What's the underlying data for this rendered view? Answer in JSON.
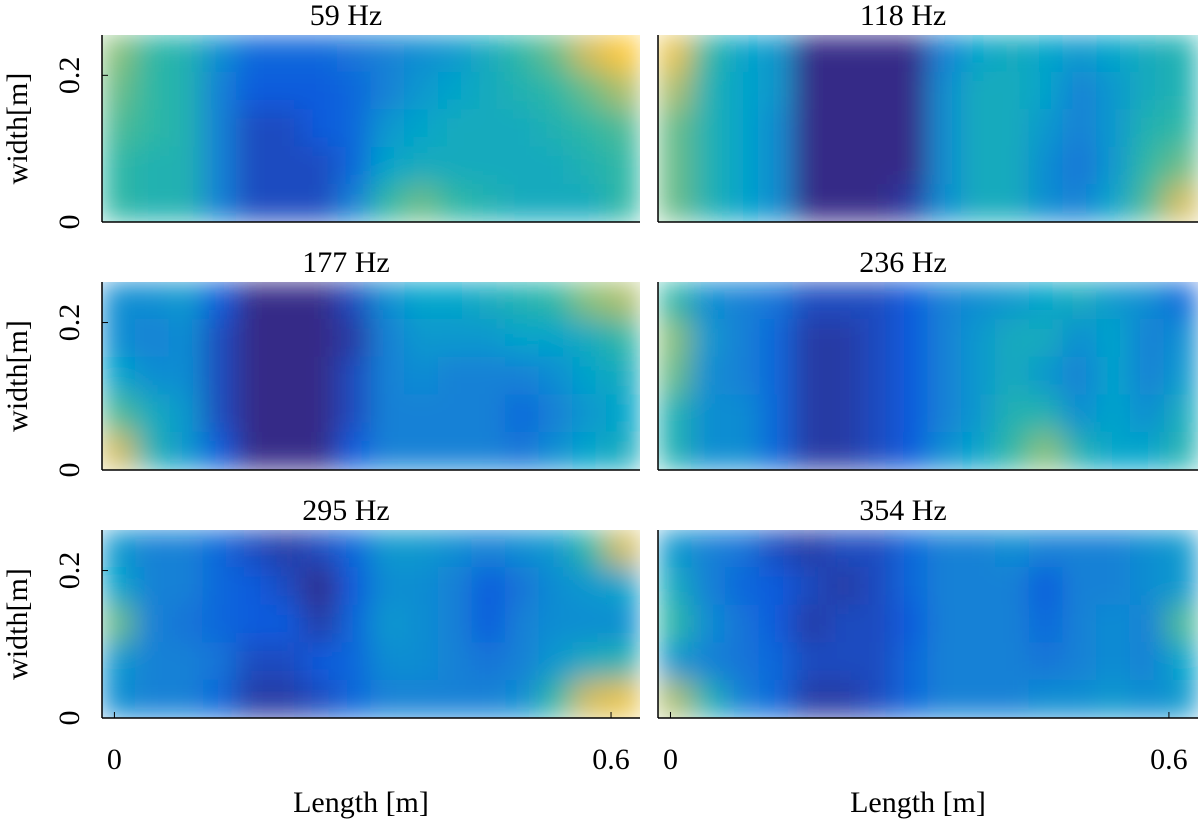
{
  "chart_data": [
    {
      "type": "heatmap",
      "title": "59 Hz",
      "ylabel": "width[m]",
      "colormap": "parula",
      "xlim": [
        -0.015,
        0.635
      ],
      "ylim": [
        0,
        0.255
      ],
      "yticks": [
        0,
        0.2
      ],
      "z": [
        [
          0.75,
          0.6,
          0.55,
          0.35,
          0.2,
          0.2,
          0.2,
          0.25,
          0.3,
          0.35,
          0.4,
          0.5,
          0.6,
          0.7,
          0.85,
          0.95
        ],
        [
          0.7,
          0.6,
          0.55,
          0.3,
          0.15,
          0.15,
          0.15,
          0.2,
          0.3,
          0.4,
          0.45,
          0.5,
          0.55,
          0.6,
          0.7,
          0.8
        ],
        [
          0.65,
          0.6,
          0.55,
          0.3,
          0.1,
          0.1,
          0.15,
          0.2,
          0.4,
          0.45,
          0.5,
          0.5,
          0.5,
          0.55,
          0.6,
          0.65
        ],
        [
          0.6,
          0.55,
          0.55,
          0.3,
          0.1,
          0.1,
          0.1,
          0.2,
          0.45,
          0.5,
          0.5,
          0.5,
          0.5,
          0.5,
          0.55,
          0.6
        ],
        [
          0.6,
          0.55,
          0.55,
          0.3,
          0.1,
          0.1,
          0.1,
          0.3,
          0.6,
          0.7,
          0.6,
          0.55,
          0.5,
          0.5,
          0.5,
          0.6
        ]
      ]
    },
    {
      "type": "heatmap",
      "title": "118 Hz",
      "colormap": "parula",
      "xlim": [
        -0.015,
        0.635
      ],
      "ylim": [
        0,
        0.255
      ],
      "z": [
        [
          0.9,
          0.6,
          0.45,
          0.4,
          0,
          0,
          0,
          0,
          0.3,
          0.45,
          0.5,
          0.45,
          0.4,
          0.45,
          0.5,
          0.55
        ],
        [
          0.8,
          0.55,
          0.45,
          0.4,
          0,
          0,
          0,
          0,
          0.35,
          0.5,
          0.5,
          0.45,
          0.3,
          0.4,
          0.5,
          0.55
        ],
        [
          0.7,
          0.55,
          0.45,
          0.35,
          0,
          0,
          0,
          0,
          0.35,
          0.5,
          0.5,
          0.4,
          0.3,
          0.4,
          0.55,
          0.6
        ],
        [
          0.7,
          0.55,
          0.45,
          0.35,
          0,
          0,
          0,
          0,
          0.35,
          0.5,
          0.5,
          0.35,
          0.25,
          0.4,
          0.6,
          0.7
        ],
        [
          0.7,
          0.55,
          0.45,
          0.35,
          0,
          0,
          0,
          0.05,
          0.35,
          0.5,
          0.5,
          0.35,
          0.3,
          0.45,
          0.65,
          0.85
        ]
      ]
    },
    {
      "type": "heatmap",
      "title": "177 Hz",
      "ylabel": "width[m]",
      "colormap": "parula",
      "xlim": [
        -0.015,
        0.635
      ],
      "ylim": [
        0,
        0.255
      ],
      "yticks": [
        0,
        0.2
      ],
      "z": [
        [
          0.35,
          0.35,
          0.4,
          0.15,
          0,
          0,
          0,
          0.1,
          0.35,
          0.45,
          0.45,
          0.5,
          0.55,
          0.6,
          0.75,
          0.8
        ],
        [
          0.35,
          0.3,
          0.35,
          0.1,
          0,
          0,
          0,
          0.05,
          0.3,
          0.4,
          0.4,
          0.4,
          0.45,
          0.45,
          0.5,
          0.6
        ],
        [
          0.45,
          0.35,
          0.35,
          0.1,
          0,
          0,
          0,
          0.1,
          0.3,
          0.35,
          0.3,
          0.3,
          0.3,
          0.35,
          0.45,
          0.5
        ],
        [
          0.65,
          0.5,
          0.4,
          0.1,
          0,
          0,
          0,
          0.1,
          0.3,
          0.3,
          0.3,
          0.3,
          0.2,
          0.3,
          0.4,
          0.45
        ],
        [
          0.85,
          0.55,
          0.4,
          0.15,
          0,
          0,
          0,
          0.15,
          0.3,
          0.3,
          0.3,
          0.3,
          0.25,
          0.35,
          0.45,
          0.5
        ]
      ]
    },
    {
      "type": "heatmap",
      "title": "236 Hz",
      "colormap": "parula",
      "xlim": [
        -0.015,
        0.635
      ],
      "ylim": [
        0,
        0.255
      ],
      "z": [
        [
          0.6,
          0.35,
          0.3,
          0.25,
          0.1,
          0.1,
          0.1,
          0.15,
          0.3,
          0.35,
          0.4,
          0.45,
          0.5,
          0.4,
          0.35,
          0.2
        ],
        [
          0.75,
          0.4,
          0.3,
          0.2,
          0.05,
          0.05,
          0.1,
          0.15,
          0.3,
          0.4,
          0.5,
          0.5,
          0.35,
          0.45,
          0.3,
          0.35
        ],
        [
          0.7,
          0.35,
          0.3,
          0.2,
          0.05,
          0.05,
          0.1,
          0.15,
          0.3,
          0.4,
          0.5,
          0.4,
          0.3,
          0.45,
          0.3,
          0.4
        ],
        [
          0.55,
          0.35,
          0.35,
          0.2,
          0.05,
          0.05,
          0.1,
          0.15,
          0.3,
          0.4,
          0.55,
          0.55,
          0.35,
          0.45,
          0.35,
          0.5
        ],
        [
          0.55,
          0.35,
          0.35,
          0.2,
          0.05,
          0.05,
          0.1,
          0.15,
          0.35,
          0.45,
          0.6,
          0.75,
          0.55,
          0.45,
          0.45,
          0.55
        ]
      ]
    },
    {
      "type": "heatmap",
      "title": "295 Hz",
      "ylabel": "width[m]",
      "xlabel": "Length [m]",
      "colormap": "parula",
      "xlim": [
        -0.015,
        0.635
      ],
      "ylim": [
        0,
        0.255
      ],
      "yticks": [
        0,
        0.2
      ],
      "xticks": [
        0,
        0.6
      ],
      "z": [
        [
          0.4,
          0.3,
          0.3,
          0.2,
          0.1,
          0.05,
          0.1,
          0.2,
          0.4,
          0.4,
          0.35,
          0.3,
          0.35,
          0.4,
          0.6,
          0.85
        ],
        [
          0.45,
          0.3,
          0.3,
          0.2,
          0.15,
          0.1,
          0,
          0.15,
          0.35,
          0.35,
          0.3,
          0.15,
          0.25,
          0.35,
          0.4,
          0.45
        ],
        [
          0.7,
          0.3,
          0.25,
          0.2,
          0.15,
          0.15,
          0.05,
          0.2,
          0.4,
          0.35,
          0.3,
          0.15,
          0.3,
          0.35,
          0.35,
          0.35
        ],
        [
          0.4,
          0.3,
          0.3,
          0.25,
          0.1,
          0.1,
          0.15,
          0.2,
          0.35,
          0.35,
          0.3,
          0.25,
          0.3,
          0.4,
          0.5,
          0.55
        ],
        [
          0.35,
          0.3,
          0.3,
          0.2,
          0.05,
          0.05,
          0.1,
          0.2,
          0.3,
          0.3,
          0.3,
          0.3,
          0.35,
          0.6,
          0.85,
          0.9
        ]
      ]
    },
    {
      "type": "heatmap",
      "title": "354 Hz",
      "xlabel": "Length [m]",
      "colormap": "parula",
      "xlim": [
        -0.015,
        0.635
      ],
      "ylim": [
        0,
        0.255
      ],
      "xticks": [
        0,
        0.6
      ],
      "z": [
        [
          0.4,
          0.3,
          0.25,
          0.1,
          0.05,
          0.1,
          0.1,
          0.2,
          0.3,
          0.3,
          0.35,
          0.3,
          0.3,
          0.3,
          0.35,
          0.4
        ],
        [
          0.5,
          0.3,
          0.2,
          0.15,
          0.1,
          0.05,
          0.1,
          0.2,
          0.3,
          0.3,
          0.3,
          0.15,
          0.3,
          0.3,
          0.35,
          0.4
        ],
        [
          0.6,
          0.35,
          0.25,
          0.15,
          0.05,
          0.1,
          0.1,
          0.15,
          0.3,
          0.3,
          0.3,
          0.2,
          0.3,
          0.35,
          0.3,
          0.65
        ],
        [
          0.4,
          0.3,
          0.25,
          0.2,
          0.1,
          0.1,
          0.1,
          0.2,
          0.3,
          0.3,
          0.3,
          0.25,
          0.3,
          0.35,
          0.3,
          0.45
        ],
        [
          0.8,
          0.55,
          0.3,
          0.2,
          0.05,
          0.05,
          0.1,
          0.2,
          0.3,
          0.3,
          0.3,
          0.35,
          0.35,
          0.4,
          0.35,
          0.4
        ]
      ]
    }
  ]
}
